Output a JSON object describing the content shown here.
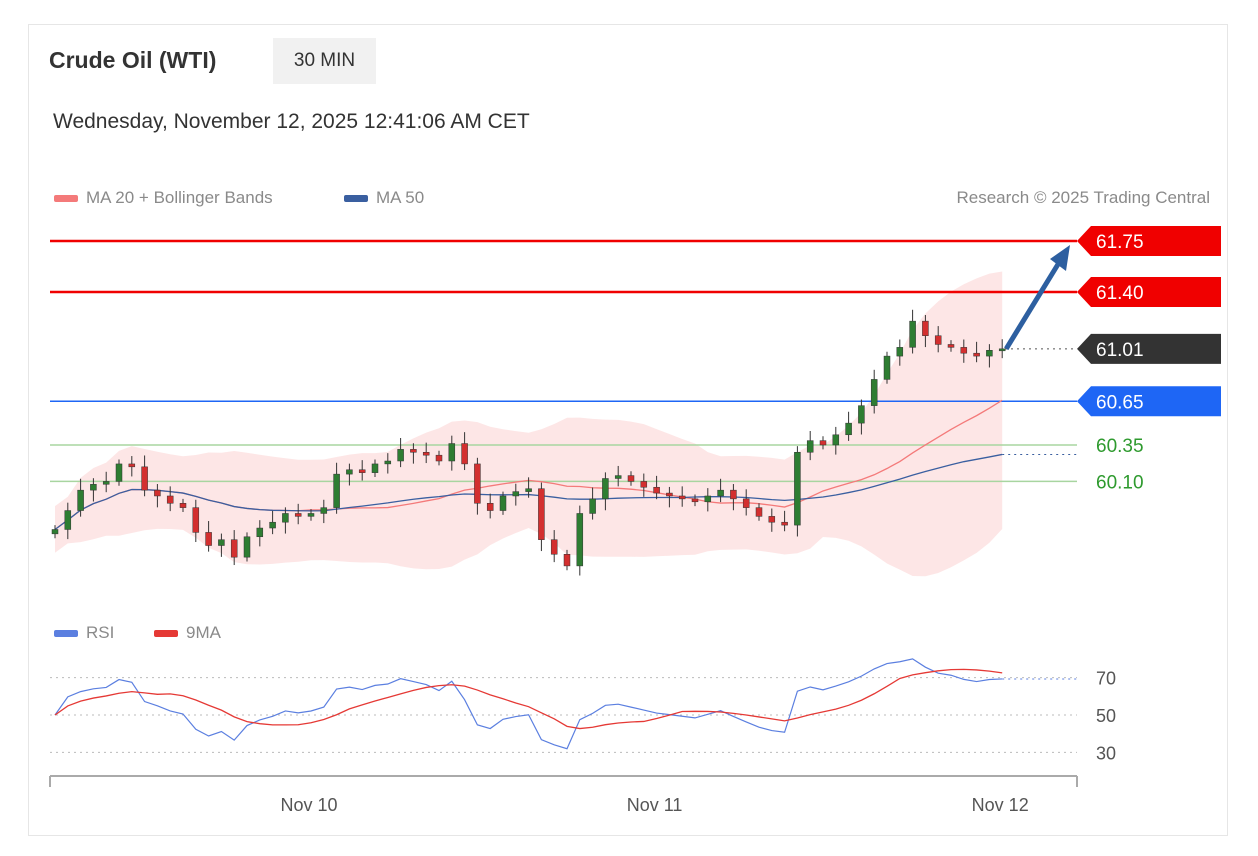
{
  "header": {
    "title": "Crude Oil (WTI)",
    "interval": "30 MIN",
    "datetime": "Wednesday, November 12, 2025 12:41:06 AM CET"
  },
  "legend": {
    "ma20": "MA 20 + Bollinger Bands",
    "ma50": "MA 50",
    "credit": "Research © 2025 Trading Central",
    "rsi": "RSI",
    "rsi_ma": "9MA"
  },
  "colors": {
    "resistance": "#f00000",
    "current": "#333333",
    "pivot": "#1e66f5",
    "support": "#2e9a2e",
    "up": "#2e7d32",
    "down": "#d32f2f",
    "band": "#fde0e0",
    "ma20": "#f47a7a",
    "ma50": "#3a5fa0",
    "rsi": "#5b7fe0",
    "rsi_ma": "#e53935"
  },
  "chart_data": {
    "type": "candlestick",
    "ylim": [
      59.25,
      61.85
    ],
    "levels": [
      {
        "label": "61.75",
        "value": 61.75,
        "kind": "resistance"
      },
      {
        "label": "61.40",
        "value": 61.4,
        "kind": "resistance"
      },
      {
        "label": "61.01",
        "value": 61.01,
        "kind": "current"
      },
      {
        "label": "60.65",
        "value": 60.65,
        "kind": "pivot"
      },
      {
        "label": "60.35",
        "value": 60.35,
        "kind": "support"
      },
      {
        "label": "60.10",
        "value": 60.1,
        "kind": "support"
      }
    ],
    "target": 61.75,
    "closes": [
      59.77,
      59.9,
      60.04,
      60.08,
      60.1,
      60.22,
      60.2,
      60.04,
      60.0,
      59.95,
      59.92,
      59.75,
      59.66,
      59.7,
      59.58,
      59.72,
      59.78,
      59.82,
      59.88,
      59.86,
      59.88,
      59.92,
      60.15,
      60.18,
      60.16,
      60.22,
      60.24,
      60.32,
      60.3,
      60.28,
      60.24,
      60.36,
      60.22,
      59.95,
      59.9,
      60.0,
      60.03,
      60.05,
      59.7,
      59.6,
      59.52,
      59.88,
      59.98,
      60.12,
      60.14,
      60.1,
      60.06,
      60.02,
      60.0,
      59.98,
      59.96,
      60.0,
      60.04,
      59.98,
      59.92,
      59.86,
      59.82,
      59.8,
      60.3,
      60.38,
      60.35,
      60.42,
      60.5,
      60.62,
      60.8,
      60.96,
      61.02,
      61.2,
      61.1,
      61.04,
      61.02,
      60.98,
      60.96,
      61.0,
      61.01
    ],
    "x_ticks": [
      {
        "label": "Nov 10",
        "index": 20
      },
      {
        "label": "Nov 11",
        "index": 47
      },
      {
        "label": "Nov 12",
        "index": 74
      }
    ],
    "rsi": {
      "ylim": [
        20,
        80
      ],
      "ticks": [
        "70",
        "50",
        "30"
      ],
      "tick_values": [
        70,
        50,
        30
      ]
    }
  }
}
